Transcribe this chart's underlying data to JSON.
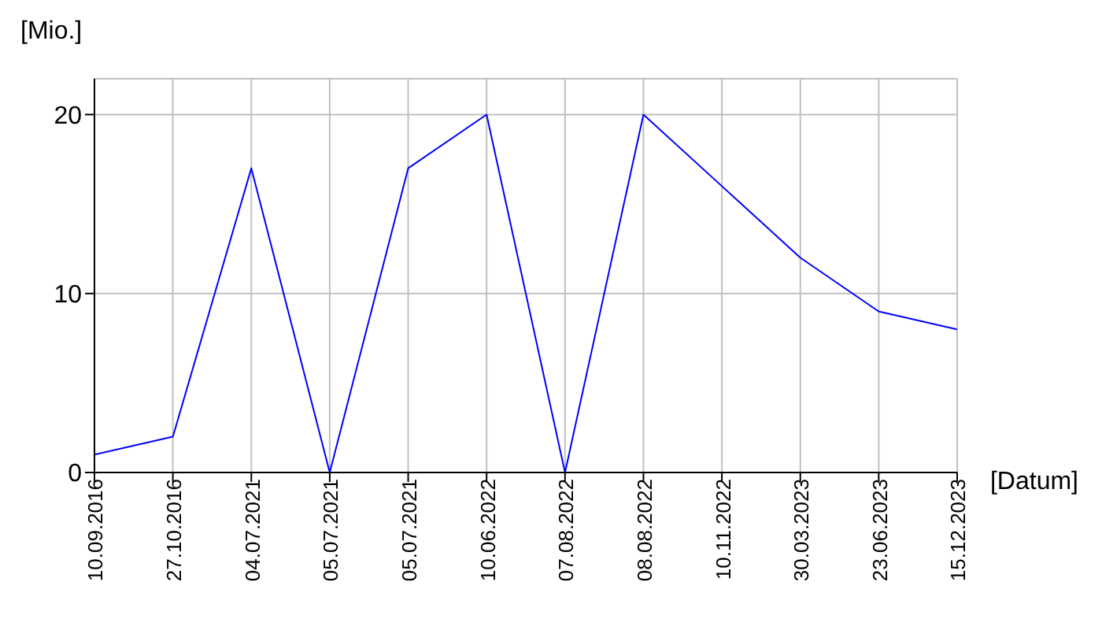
{
  "chart_data": {
    "type": "line",
    "xlabel": "[Datum]",
    "ylabel": "[Mio.]",
    "categories": [
      "10.09.2016",
      "27.10.2016",
      "04.07.2021",
      "05.07.2021",
      "05.07.2021",
      "10.06.2022",
      "07.08.2022",
      "08.08.2022",
      "10.11.2022",
      "30.03.2023",
      "23.06.2023",
      "15.12.2023"
    ],
    "series": [
      {
        "color": "#0000ff",
        "values": [
          1,
          2,
          17,
          0,
          17,
          20,
          0,
          20,
          16,
          12,
          9,
          8
        ]
      }
    ],
    "ylim": [
      0,
      22
    ],
    "yticks": [
      0,
      10,
      20
    ],
    "grid": true,
    "legend": false,
    "marker": "none",
    "line_style": "solid"
  }
}
